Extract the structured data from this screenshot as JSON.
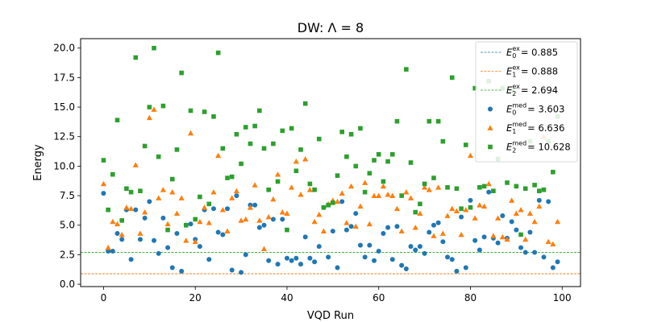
{
  "chart_data": {
    "type": "scatter",
    "title": "DW: Λ = 8",
    "xlabel": "VQD Run",
    "ylabel": "Energy",
    "xlim": [
      -5,
      104
    ],
    "ylim": [
      -0.2,
      20.8
    ],
    "xticks": [
      0,
      20,
      40,
      60,
      80,
      100
    ],
    "xtick_labels": [
      "0",
      "20",
      "40",
      "60",
      "80",
      "100"
    ],
    "yticks": [
      0,
      2.5,
      5,
      7.5,
      10,
      12.5,
      15,
      17.5,
      20
    ],
    "ytick_labels": [
      "0.0",
      "2.5",
      "5.0",
      "7.5",
      "10.0",
      "12.5",
      "15.0",
      "17.5",
      "20.0"
    ],
    "grid": false,
    "legend_position": "top-right",
    "reference_lines": [
      {
        "base": "E",
        "sub": "0",
        "sup": "ex",
        "label_value": "= 0.885",
        "value": 0.885,
        "color": "#1f77b4",
        "style": "dashed"
      },
      {
        "base": "E",
        "sub": "1",
        "sup": "ex",
        "label_value": "= 0.888",
        "value": 0.888,
        "color": "#ff7f0e",
        "style": "dashed"
      },
      {
        "base": "E",
        "sub": "2",
        "sup": "ex",
        "label_value": "= 2.694",
        "value": 2.694,
        "color": "#2ca02c",
        "style": "dashed"
      }
    ],
    "series": [
      {
        "base": "E",
        "sub": "0",
        "sup": "med",
        "label_value": "= 3.603",
        "color": "#1f77b4",
        "marker": "circle",
        "x": [
          0,
          1,
          2,
          3,
          4,
          5,
          6,
          7,
          8,
          9,
          10,
          11,
          12,
          13,
          14,
          15,
          16,
          17,
          18,
          19,
          20,
          21,
          22,
          23,
          24,
          25,
          26,
          27,
          28,
          29,
          30,
          31,
          32,
          33,
          34,
          35,
          36,
          37,
          38,
          39,
          40,
          41,
          42,
          43,
          44,
          45,
          46,
          47,
          48,
          49,
          50,
          51,
          52,
          53,
          54,
          55,
          56,
          57,
          58,
          59,
          60,
          61,
          62,
          63,
          64,
          65,
          66,
          67,
          68,
          69,
          70,
          71,
          72,
          73,
          74,
          75,
          76,
          77,
          78,
          79,
          80,
          81,
          82,
          83,
          84,
          85,
          86,
          87,
          88,
          89,
          90,
          91,
          92,
          93,
          94,
          95,
          96,
          97,
          98,
          99
        ],
        "y": [
          7.7,
          2.8,
          2.8,
          4.3,
          3.8,
          6.3,
          2.1,
          6.3,
          3.8,
          5.6,
          7.0,
          3.7,
          2.6,
          5.6,
          3.1,
          1.4,
          4.3,
          1.1,
          5.0,
          5.1,
          3.8,
          3.2,
          6.3,
          2.1,
          6.4,
          4.4,
          4.2,
          6.4,
          1.2,
          7.5,
          1.0,
          2.5,
          6.7,
          6.7,
          4.8,
          5.0,
          2.0,
          5.5,
          1.7,
          5.5,
          2.2,
          2.0,
          2.2,
          1.7,
          4.0,
          2.2,
          1.9,
          3.2,
          6.5,
          2.3,
          4.5,
          1.4,
          7.0,
          4.6,
          4.9,
          6.0,
          3.3,
          2.3,
          3.3,
          2.0,
          2.8,
          4.3,
          4.8,
          2.1,
          4.9,
          1.6,
          1.3,
          3.2,
          2.9,
          3.2,
          2.6,
          4.4,
          5.0,
          5.2,
          3.6,
          2.3,
          2.1,
          1.1,
          5.7,
          1.4,
          7.1,
          3.7,
          2.9,
          4.0,
          7.8,
          3.9,
          3.5,
          5.8,
          3.9,
          5.3,
          4.6,
          3.1,
          2.7,
          4.4,
          2.7,
          7.1,
          2.3,
          7.0,
          1.4,
          1.9
        ]
      },
      {
        "base": "E",
        "sub": "1",
        "sup": "med",
        "label_value": "= 6.636",
        "color": "#ff7f0e",
        "marker": "triangle",
        "x": [
          0,
          1,
          2,
          3,
          4,
          5,
          6,
          7,
          8,
          9,
          10,
          11,
          12,
          13,
          14,
          15,
          16,
          17,
          18,
          19,
          20,
          21,
          22,
          23,
          24,
          25,
          26,
          27,
          28,
          29,
          30,
          31,
          32,
          33,
          34,
          35,
          36,
          37,
          38,
          39,
          40,
          41,
          42,
          43,
          44,
          45,
          46,
          47,
          48,
          49,
          50,
          51,
          52,
          53,
          54,
          55,
          56,
          57,
          58,
          59,
          60,
          61,
          62,
          63,
          64,
          65,
          66,
          67,
          68,
          69,
          70,
          71,
          72,
          73,
          74,
          75,
          76,
          77,
          78,
          79,
          80,
          81,
          82,
          83,
          84,
          85,
          86,
          87,
          88,
          89,
          90,
          91,
          92,
          93,
          94,
          95,
          96,
          97,
          98,
          99
        ],
        "y": [
          8.5,
          3.1,
          5.3,
          5.1,
          4.2,
          6.5,
          6.4,
          10.1,
          4.3,
          6.1,
          14.1,
          14.8,
          7.3,
          8.0,
          5.1,
          7.8,
          6.0,
          7.3,
          3.7,
          12.8,
          3.6,
          5.3,
          6.5,
          5.2,
          7.8,
          10.9,
          6.3,
          4.5,
          7.3,
          7.9,
          5.4,
          5.5,
          6.5,
          8.4,
          5.4,
          3.0,
          5.7,
          7.2,
          9.3,
          6.1,
          6.0,
          8.2,
          10.4,
          7.6,
          10.6,
          8.0,
          5.3,
          5.9,
          4.5,
          6.8,
          7.1,
          7.0,
          7.7,
          5.2,
          8.3,
          4.9,
          6.6,
          8.6,
          5.1,
          7.5,
          7.5,
          8.3,
          7.6,
          7.5,
          6.4,
          4.5,
          7.8,
          7.3,
          4.8,
          6.0,
          8.2,
          8.0,
          4.1,
          8.2,
          4.3,
          5.8,
          6.4,
          6.2,
          4.2,
          6.3,
          10.9,
          5.6,
          6.7,
          6.6,
          8.5,
          4.1,
          5.6,
          4.0,
          3.8,
          7.1,
          6.0,
          6.3,
          3.8,
          6.0,
          5.3,
          6.6,
          12.5,
          3.6,
          3.4,
          5.3
        ]
      },
      {
        "base": "E",
        "sub": "2",
        "sup": "med",
        "label_value": "= 10.628",
        "color": "#2ca02c",
        "marker": "square",
        "x": [
          0,
          1,
          2,
          3,
          4,
          5,
          6,
          7,
          8,
          9,
          10,
          11,
          12,
          13,
          14,
          15,
          16,
          17,
          18,
          19,
          20,
          21,
          22,
          23,
          24,
          25,
          26,
          27,
          28,
          29,
          30,
          31,
          32,
          33,
          34,
          35,
          36,
          37,
          38,
          39,
          40,
          41,
          42,
          43,
          44,
          45,
          46,
          47,
          48,
          49,
          50,
          51,
          52,
          53,
          54,
          55,
          56,
          57,
          58,
          59,
          60,
          61,
          62,
          63,
          64,
          65,
          66,
          67,
          68,
          69,
          70,
          71,
          72,
          73,
          74,
          75,
          76,
          77,
          78,
          79,
          80,
          81,
          82,
          83,
          84,
          85,
          86,
          87,
          88,
          89,
          90,
          91,
          92,
          93,
          94,
          95,
          96,
          97,
          98,
          99
        ],
        "y": [
          10.5,
          6.3,
          9.3,
          13.9,
          5.4,
          8.1,
          7.8,
          19.2,
          7.9,
          11.7,
          15.0,
          20.0,
          10.8,
          15.1,
          4.6,
          8.9,
          11.4,
          17.9,
          5.0,
          14.7,
          5.5,
          7.4,
          14.6,
          6.8,
          14.2,
          19.6,
          11.5,
          9.0,
          9.1,
          12.7,
          10.2,
          13.3,
          11.9,
          13.4,
          14.7,
          11.5,
          8.0,
          11.9,
          8.7,
          13.0,
          4.6,
          13.2,
          9.6,
          11.4,
          15.3,
          8.5,
          8.0,
          12.3,
          6.5,
          6.7,
          6.9,
          9.2,
          12.9,
          10.8,
          12.7,
          10.0,
          13.2,
          7.8,
          9.4,
          10.5,
          11.0,
          8.7,
          10.4,
          11.0,
          13.8,
          7.5,
          18.2,
          10.3,
          6.1,
          6.8,
          8.5,
          13.8,
          9.0,
          13.8,
          12.1,
          8.2,
          17.5,
          8.1,
          6.4,
          11.8,
          6.5,
          16.6,
          8.2,
          8.3,
          17.2,
          7.9,
          10.6,
          16.6,
          8.6,
          16.4,
          8.3,
          4.2,
          8.1,
          12.1,
          8.4,
          7.9,
          8.0,
          12.1,
          9.5,
          14.2
        ]
      }
    ]
  }
}
